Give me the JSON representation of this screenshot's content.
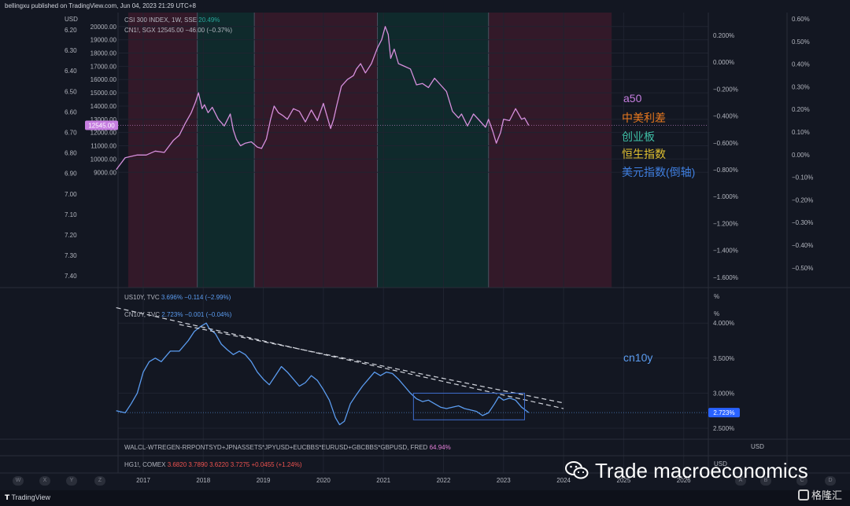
{
  "header": {
    "text": "bellingxu published on TradingView.com, Jun 04, 2023 21:29 UTC+8"
  },
  "top_panel": {
    "left_unit": "USD",
    "legend_csi": {
      "name": "CSI 300 INDEX, 1W, SSE",
      "change": "20.49%"
    },
    "legend_cn1": {
      "name": "CN1!, SGX",
      "values": "12545.00   −46.00 (−0.37%)"
    },
    "price_tag": "12545.00"
  },
  "mid_panel": {
    "legend_us10y": {
      "name": "US10Y, TVC",
      "values": "3.696%",
      "change": "−0.114 (−2.99%)"
    },
    "legend_cn10y": {
      "name": "CN10Y, TVC",
      "values": "2.723%",
      "change": "−0.001 (−0.04%)"
    },
    "unit_a": "%",
    "unit_b": "%",
    "price_tag": "2.723%"
  },
  "bottom_panels": {
    "walcl": {
      "name": "WALCL-WTREGEN-RRPONTSYD+JPNASSETS*JPYUSD+EUCBBS*EURUSD+GBCBBS*GBPUSD, FRED",
      "change": "64.94%"
    },
    "walcl_unit": "USD",
    "hg": {
      "name": "HG1!, COMEX",
      "values": "3.6820  3.7890  3.6220  3.7275  +0.0455 (+1.24%)"
    },
    "hg_unit": "USD"
  },
  "annotations": {
    "a50": {
      "text": "a50",
      "color": "#c67ee0"
    },
    "spread": {
      "text": "中美利差",
      "color": "#e8781e"
    },
    "chinext": {
      "text": "创业板",
      "color": "#3fbfa6"
    },
    "hangseng": {
      "text": "恒生指数",
      "color": "#e0c030"
    },
    "dxy": {
      "text": "美元指数(倒轴)",
      "color": "#3f7fe0"
    },
    "cn10y": {
      "text": "cn10y",
      "color": "#5b9cf0"
    }
  },
  "watermark": {
    "text": "Trade macroeconomics",
    "icon": "wechat-icon"
  },
  "footer": {
    "tradingview": "TradingView",
    "gelonghui": "格隆汇",
    "tools": [
      "W",
      "X",
      "Y",
      "Z",
      "A",
      "B",
      "C",
      "D"
    ]
  },
  "colors": {
    "background": "#131722",
    "a50_line": "#d58fdc",
    "cn10y_line": "#5b9cf0",
    "shade_red": "#3a1a2a",
    "shade_teal": "#0f2e2e",
    "grid": "#1f2330"
  },
  "chart_data": [
    {
      "type": "line",
      "title": "CSI 300 INDEX, 1W, SSE",
      "series": [
        {
          "name": "CN1!, SGX",
          "x": [
            2016.55,
            2016.7,
            2016.9,
            2017.05,
            2017.2,
            2017.35,
            2017.5,
            2017.6,
            2017.7,
            2017.8,
            2017.87,
            2017.92,
            2017.98,
            2018.02,
            2018.08,
            2018.15,
            2018.25,
            2018.35,
            2018.45,
            2018.5,
            2018.55,
            2018.62,
            2018.7,
            2018.8,
            2018.9,
            2018.97,
            2019.05,
            2019.12,
            2019.18,
            2019.25,
            2019.32,
            2019.4,
            2019.5,
            2019.6,
            2019.7,
            2019.8,
            2019.9,
            2020.0,
            2020.05,
            2020.12,
            2020.17,
            2020.22,
            2020.3,
            2020.4,
            2020.5,
            2020.55,
            2020.62,
            2020.7,
            2020.8,
            2020.9,
            2020.97,
            2021.03,
            2021.08,
            2021.12,
            2021.18,
            2021.25,
            2021.35,
            2021.45,
            2021.55,
            2021.65,
            2021.75,
            2021.85,
            2021.95,
            2022.05,
            2022.15,
            2022.25,
            2022.3,
            2022.4,
            2022.5,
            2022.6,
            2022.7,
            2022.75,
            2022.82,
            2022.88,
            2022.95,
            2023.0,
            2023.1,
            2023.2,
            2023.3,
            2023.35,
            2023.42
          ],
          "values": [
            9200,
            10100,
            10300,
            10300,
            10600,
            10500,
            11400,
            11800,
            12700,
            13500,
            14300,
            15000,
            13800,
            14100,
            13500,
            13900,
            13000,
            12500,
            13400,
            12200,
            11500,
            11000,
            11200,
            11300,
            10900,
            10800,
            11500,
            13000,
            14000,
            13500,
            13300,
            13000,
            13800,
            13600,
            12800,
            13700,
            12900,
            14200,
            13400,
            12300,
            13000,
            14000,
            15500,
            16000,
            16300,
            16800,
            17200,
            16500,
            17200,
            18400,
            19000,
            20000,
            19400,
            17600,
            18300,
            17200,
            17000,
            16800,
            15600,
            15700,
            15400,
            16100,
            15600,
            15100,
            13600,
            13100,
            13400,
            12500,
            13400,
            12900,
            12400,
            13000,
            12100,
            11200,
            12000,
            13000,
            12900,
            13800,
            13000,
            13100,
            12545
          ]
        }
      ],
      "ylim": [
        8700,
        20700
      ],
      "yticks": [
        "20000.00",
        "19000.00",
        "18000.00",
        "17000.00",
        "16000.00",
        "15000.00",
        "14000.00",
        "13000.00",
        "12000.00",
        "11000.00",
        "10000.00",
        "9000.00"
      ],
      "left_ticks": [
        "6.20",
        "6.30",
        "6.40",
        "6.50",
        "6.60",
        "6.70",
        "6.80",
        "6.90",
        "7.00",
        "7.10",
        "7.20",
        "7.30",
        "7.40"
      ],
      "right_pct_ticks": [
        "0.200%",
        "0.000%",
        "−0.200%",
        "−0.400%",
        "−0.600%",
        "−0.800%",
        "−1.000%",
        "−1.200%",
        "−1.400%",
        "−1.600%"
      ],
      "far_right_ticks": [
        "0.60%",
        "0.50%",
        "0.40%",
        "0.30%",
        "0.20%",
        "0.10%",
        "0.00%",
        "−0.10%",
        "−0.20%",
        "−0.30%",
        "−0.40%",
        "−0.50%"
      ],
      "shaded_periods": [
        {
          "from": 2016.75,
          "to": 2017.9,
          "tone": "red"
        },
        {
          "from": 2017.9,
          "to": 2018.85,
          "tone": "teal"
        },
        {
          "from": 2018.85,
          "to": 2020.9,
          "tone": "red"
        },
        {
          "from": 2020.9,
          "to": 2022.75,
          "tone": "teal"
        },
        {
          "from": 2022.75,
          "to": 2024.8,
          "tone": "red"
        }
      ],
      "grid": true
    },
    {
      "type": "line",
      "title": "CN10Y, TVC",
      "series": [
        {
          "name": "CN10Y, TVC",
          "x": [
            2016.55,
            2016.7,
            2016.8,
            2016.9,
            2017.0,
            2017.1,
            2017.2,
            2017.3,
            2017.45,
            2017.6,
            2017.75,
            2017.85,
            2017.95,
            2018.05,
            2018.1,
            2018.2,
            2018.3,
            2018.4,
            2018.5,
            2018.6,
            2018.7,
            2018.8,
            2018.9,
            2019.0,
            2019.1,
            2019.2,
            2019.3,
            2019.4,
            2019.5,
            2019.6,
            2019.7,
            2019.8,
            2019.9,
            2020.0,
            2020.1,
            2020.2,
            2020.27,
            2020.35,
            2020.45,
            2020.55,
            2020.65,
            2020.75,
            2020.85,
            2020.95,
            2021.05,
            2021.15,
            2021.25,
            2021.35,
            2021.45,
            2021.55,
            2021.65,
            2021.75,
            2021.85,
            2021.95,
            2022.05,
            2022.15,
            2022.25,
            2022.35,
            2022.45,
            2022.55,
            2022.65,
            2022.75,
            2022.85,
            2022.92,
            2023.0,
            2023.1,
            2023.2,
            2023.3,
            2023.42
          ],
          "values": [
            2.75,
            2.72,
            2.85,
            3.0,
            3.3,
            3.45,
            3.5,
            3.45,
            3.6,
            3.6,
            3.75,
            3.88,
            3.95,
            4.0,
            3.92,
            3.85,
            3.7,
            3.62,
            3.55,
            3.6,
            3.55,
            3.45,
            3.3,
            3.2,
            3.12,
            3.25,
            3.38,
            3.3,
            3.2,
            3.1,
            3.15,
            3.25,
            3.18,
            3.05,
            2.9,
            2.65,
            2.55,
            2.6,
            2.85,
            2.98,
            3.1,
            3.2,
            3.3,
            3.25,
            3.3,
            3.28,
            3.2,
            3.1,
            3.0,
            2.92,
            2.88,
            2.9,
            2.85,
            2.8,
            2.78,
            2.8,
            2.82,
            2.78,
            2.76,
            2.74,
            2.68,
            2.72,
            2.85,
            2.95,
            2.9,
            2.93,
            2.9,
            2.8,
            2.723
          ]
        }
      ],
      "trendlines": [
        {
          "from": [
            2016.55,
            4.22
          ],
          "to": [
            2024.0,
            2.78
          ],
          "style": "dashed"
        },
        {
          "from": [
            2017.6,
            3.98
          ],
          "to": [
            2024.0,
            2.86
          ],
          "style": "dashed"
        }
      ],
      "range_box": {
        "x": [
          2021.5,
          2023.35
        ],
        "y": [
          2.62,
          3.0
        ]
      },
      "ylim": [
        2.4,
        4.25
      ],
      "yticks": [
        "4.000%",
        "3.500%",
        "3.000%",
        "2.500%"
      ],
      "grid": true
    }
  ],
  "time_axis": {
    "labels": [
      "2017",
      "2018",
      "2019",
      "2020",
      "2021",
      "2022",
      "2023",
      "2024",
      "2025",
      "2026"
    ]
  }
}
